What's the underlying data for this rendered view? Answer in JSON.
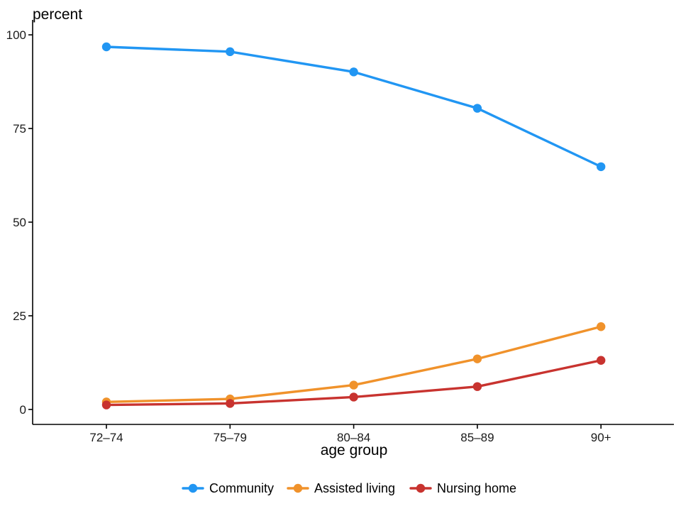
{
  "chart_data": {
    "type": "line",
    "title": "",
    "xlabel": "age group",
    "ylabel": "percent",
    "categories": [
      "72–74",
      "75–79",
      "80–84",
      "85–89",
      "90+"
    ],
    "ylim": [
      -4,
      104
    ],
    "yticks": [
      0,
      25,
      50,
      75,
      100
    ],
    "grid": false,
    "legend_position": "bottom",
    "series": [
      {
        "name": "Community",
        "color": "#2196F3",
        "values": [
          96.8,
          95.5,
          90.1,
          80.4,
          64.8
        ]
      },
      {
        "name": "Assisted living",
        "color": "#F0922B",
        "values": [
          2.0,
          2.8,
          6.5,
          13.5,
          22.1
        ]
      },
      {
        "name": "Nursing home",
        "color": "#C8332F",
        "values": [
          1.2,
          1.6,
          3.3,
          6.1,
          13.1
        ]
      }
    ]
  }
}
